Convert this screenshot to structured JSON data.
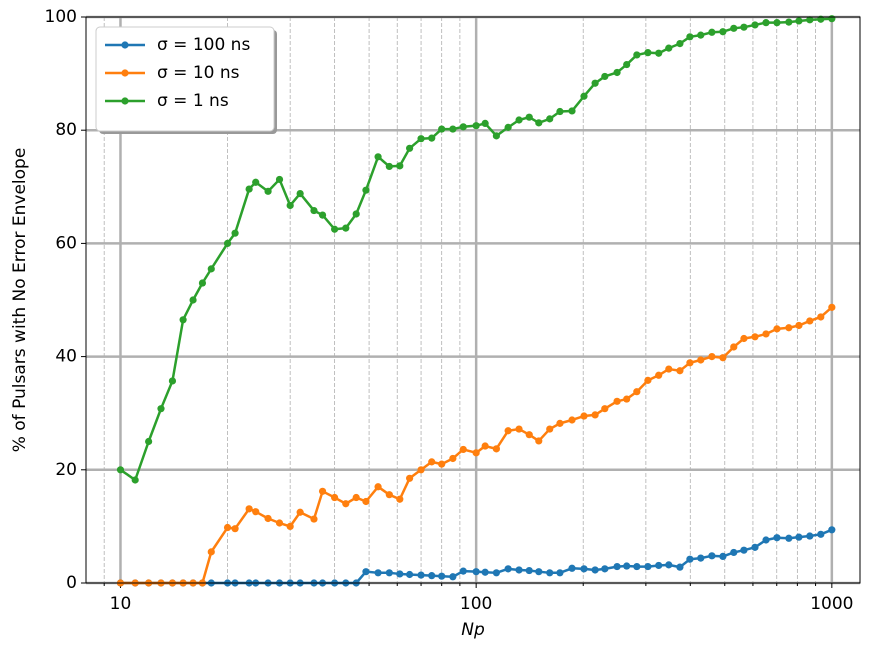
{
  "chart_data": {
    "type": "line",
    "xlabel": "Np",
    "ylabel": "% of Pulsars with No Error Envelope",
    "x": [
      10,
      11,
      12,
      13,
      14,
      15,
      16,
      17,
      18,
      20,
      21,
      23,
      24,
      26,
      28,
      30,
      32,
      35,
      37,
      40,
      43,
      46,
      49,
      53,
      57,
      61,
      65,
      70,
      75,
      80,
      86,
      92,
      100,
      106,
      114,
      123,
      132,
      141,
      150,
      161,
      172,
      186,
      201,
      216,
      230,
      249,
      265,
      283,
      304,
      326,
      348,
      374,
      399,
      428,
      460,
      494,
      530,
      566,
      608,
      653,
      701,
      757,
      808,
      867,
      931,
      1000
    ],
    "series": [
      {
        "name": "σ = 100 ns",
        "color": "#1f77b4",
        "values": [
          0,
          0,
          0,
          0,
          0,
          0,
          0,
          0,
          0,
          0,
          0,
          0,
          0,
          0,
          0,
          0,
          0,
          0,
          0,
          0,
          0,
          0,
          2.0,
          1.8,
          1.8,
          1.6,
          1.5,
          1.4,
          1.3,
          1.2,
          1.1,
          2.1,
          2.0,
          1.9,
          1.8,
          2.5,
          2.3,
          2.2,
          2.0,
          1.8,
          1.8,
          2.6,
          2.5,
          2.3,
          2.5,
          2.9,
          3.0,
          2.9,
          2.9,
          3.1,
          3.2,
          2.8,
          4.2,
          4.4,
          4.8,
          4.7,
          5.4,
          5.8,
          6.3,
          7.6,
          8.0,
          7.9,
          8.1,
          8.3,
          8.6,
          9.4
        ]
      },
      {
        "name": "σ = 10 ns",
        "color": "#ff7f0e",
        "values": [
          0,
          0,
          0,
          0,
          0,
          0,
          0,
          0,
          5.5,
          9.8,
          9.6,
          13.1,
          12.6,
          11.4,
          10.6,
          10.0,
          12.5,
          11.3,
          16.2,
          15.1,
          14.0,
          15.1,
          14.4,
          17.0,
          15.6,
          14.8,
          18.5,
          20.0,
          21.4,
          21.0,
          22.0,
          23.6,
          23.0,
          24.2,
          23.7,
          26.9,
          27.2,
          26.2,
          25.1,
          27.2,
          28.2,
          28.8,
          29.5,
          29.7,
          30.8,
          32.1,
          32.5,
          33.8,
          35.8,
          36.7,
          37.8,
          37.5,
          38.9,
          39.4,
          40.0,
          39.8,
          41.7,
          43.2,
          43.5,
          44.0,
          44.9,
          45.1,
          45.5,
          46.3,
          47.0,
          48.7
        ]
      },
      {
        "name": "σ = 1 ns",
        "color": "#2ca02c",
        "values": [
          20,
          18.2,
          25,
          30.8,
          35.7,
          46.5,
          50,
          53,
          55.5,
          60,
          61.8,
          69.6,
          70.8,
          69.2,
          71.3,
          66.7,
          68.8,
          65.8,
          65,
          62.5,
          62.7,
          65.2,
          69.4,
          75.3,
          73.6,
          73.7,
          76.8,
          78.5,
          78.6,
          80.2,
          80.2,
          80.6,
          80.8,
          81.2,
          79,
          80.5,
          81.8,
          82.3,
          81.3,
          82,
          83.3,
          83.4,
          86,
          88.3,
          89.5,
          90.2,
          91.6,
          93.3,
          93.7,
          93.6,
          94.5,
          95.3,
          96.5,
          96.8,
          97.3,
          97.4,
          98,
          98.2,
          98.6,
          99,
          99,
          99.1,
          99.3,
          99.5,
          99.6,
          99.7
        ]
      }
    ],
    "xscale": "log",
    "xlim": [
      8,
      1200
    ],
    "xticks": [
      10,
      100,
      1000
    ],
    "xminorticks": [
      9,
      20,
      30,
      40,
      50,
      60,
      70,
      80,
      90,
      200,
      300,
      400,
      500,
      600,
      700,
      800,
      900
    ],
    "ylim": [
      0,
      100
    ],
    "yticks": [
      0,
      20,
      40,
      60,
      80,
      100
    ],
    "grid": true,
    "legend": "upper left"
  }
}
